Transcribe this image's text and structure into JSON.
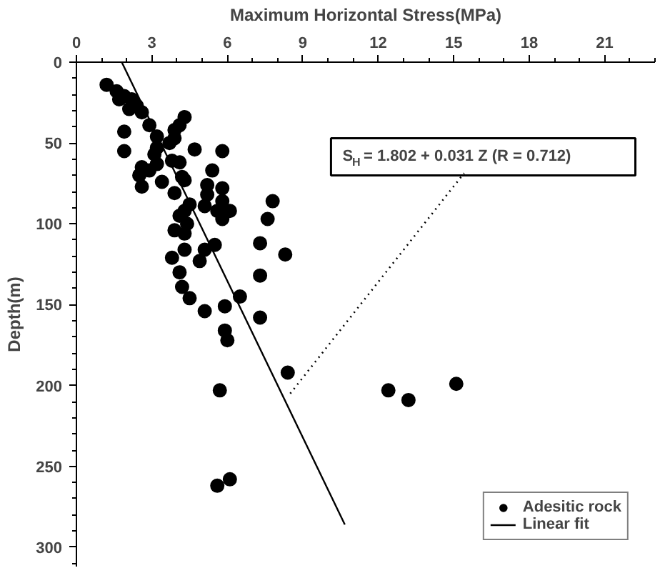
{
  "chart_data": {
    "type": "scatter",
    "xlabel": "Maximum Horizontal Stress(MPa)",
    "ylabel": "Depth(m)",
    "xlim": [
      0,
      23
    ],
    "ylim": [
      312,
      0
    ],
    "xticks": [
      0,
      3,
      6,
      9,
      12,
      15,
      18,
      21
    ],
    "yticks": [
      0,
      50,
      100,
      150,
      200,
      250,
      300
    ],
    "grid": false,
    "legend": "bottom right",
    "annotations": [
      {
        "text": "S$_{H}$ = 1.802 + 0.031 Z (R = 0.712)",
        "x": 8.5,
        "y": 205
      }
    ],
    "series": [
      {
        "name": "Adesitic rock",
        "marker": "circle",
        "color": "#000000",
        "x": [
          1.2,
          1.6,
          1.7,
          1.9,
          2.2,
          2.1,
          2.4,
          2.6,
          1.9,
          1.9,
          2.9,
          3.2,
          4.3,
          4.1,
          3.9,
          3.9,
          3.7,
          4.7,
          5.8,
          3.2,
          3.1,
          3.2,
          2.6,
          2.5,
          2.6,
          2.9,
          3.4,
          3.8,
          4.1,
          4.2,
          4.3,
          3.9,
          5.4,
          5.2,
          5.8,
          5.2,
          5.8,
          5.1,
          5.6,
          6.1,
          5.8,
          4.5,
          4.3,
          4.1,
          3.9,
          4.3,
          7.8,
          7.6,
          7.3,
          5.5,
          4.3,
          5.1,
          8.3,
          7.3,
          4.9,
          4.4,
          3.8,
          4.1,
          4.2,
          4.5,
          5.1,
          5.9,
          6.5,
          5.9,
          6.0,
          7.3,
          8.4,
          5.7,
          12.4,
          13.2,
          15.1,
          5.6,
          6.1
        ],
        "values": [
          14,
          18,
          23,
          21,
          23,
          29,
          27,
          31,
          43,
          55,
          39,
          46,
          34,
          39,
          42,
          47,
          50,
          54,
          55,
          53,
          57,
          63,
          65,
          70,
          77,
          67,
          74,
          61,
          62,
          71,
          73,
          81,
          67,
          76,
          78,
          82,
          86,
          89,
          92,
          92,
          97,
          88,
          92,
          95,
          104,
          106,
          86,
          97,
          112,
          113,
          116,
          116,
          119,
          132,
          123,
          100,
          121,
          130,
          139,
          146,
          154,
          151,
          145,
          166,
          172,
          158,
          192,
          203,
          203,
          209,
          199,
          262,
          258
        ]
      },
      {
        "name": "Linear fit",
        "type": "line",
        "color": "#000000",
        "x": [
          1.802,
          10.67
        ],
        "values": [
          0,
          286
        ],
        "line_style": "solid"
      }
    ]
  }
}
